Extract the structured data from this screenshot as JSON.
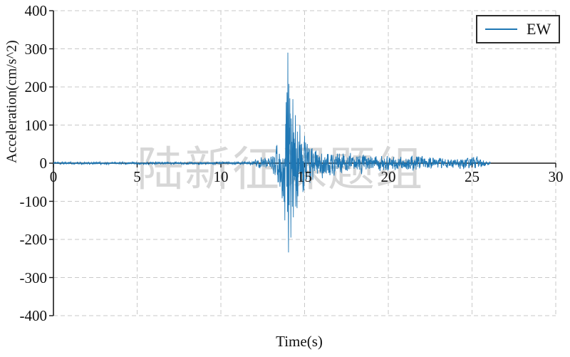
{
  "chart_data": {
    "type": "line",
    "title": "",
    "xlabel": "Time(s)",
    "ylabel": "Acceleration(cm/s^2)",
    "xlim": [
      0,
      30
    ],
    "ylim": [
      -400,
      400
    ],
    "x_ticks": [
      0,
      5,
      10,
      15,
      20,
      25,
      30
    ],
    "y_ticks": [
      400,
      300,
      200,
      100,
      0,
      -100,
      -200,
      -300,
      -400
    ],
    "grid": "dashed-gray-both-axes",
    "axis_color": "#1a1a1a",
    "grid_color": "#c9c9c9",
    "legend": {
      "position": "top-right",
      "entries": [
        {
          "label": "EW",
          "color": "#1f77b4"
        }
      ]
    },
    "series": [
      {
        "name": "EW",
        "color": "#1f77b4",
        "t_start": 0,
        "t_end": 26.1,
        "dt": 0.01,
        "peak": {
          "t": 14.0,
          "value": 290
        },
        "trough": {
          "t": 14.18,
          "value": -195
        },
        "secondary_spikes": [
          [
            13.82,
            -150
          ],
          [
            13.9,
            160
          ],
          [
            14.06,
            208
          ],
          [
            14.12,
            170
          ],
          [
            14.3,
            168
          ],
          [
            14.33,
            -142
          ],
          [
            14.45,
            126
          ],
          [
            14.55,
            -118
          ],
          [
            14.72,
            100
          ]
        ],
        "envelope": [
          [
            0,
            4
          ],
          [
            11.5,
            4
          ],
          [
            12.0,
            8
          ],
          [
            12.5,
            20
          ],
          [
            12.9,
            13
          ],
          [
            13.2,
            32
          ],
          [
            13.5,
            85
          ],
          [
            13.8,
            150
          ],
          [
            14.0,
            290
          ],
          [
            14.2,
            195
          ],
          [
            14.5,
            130
          ],
          [
            14.8,
            95
          ],
          [
            15.2,
            70
          ],
          [
            15.8,
            45
          ],
          [
            16.5,
            35
          ],
          [
            17.5,
            30
          ],
          [
            18.5,
            28
          ],
          [
            19.5,
            22
          ],
          [
            20.5,
            22
          ],
          [
            21.5,
            25
          ],
          [
            22.5,
            18
          ],
          [
            23.5,
            15
          ],
          [
            24.5,
            18
          ],
          [
            25.2,
            20
          ],
          [
            25.7,
            10
          ],
          [
            26.1,
            4
          ]
        ]
      }
    ]
  },
  "watermark": {
    "text": "陆新征课题组",
    "color": "#d7d7d7"
  }
}
